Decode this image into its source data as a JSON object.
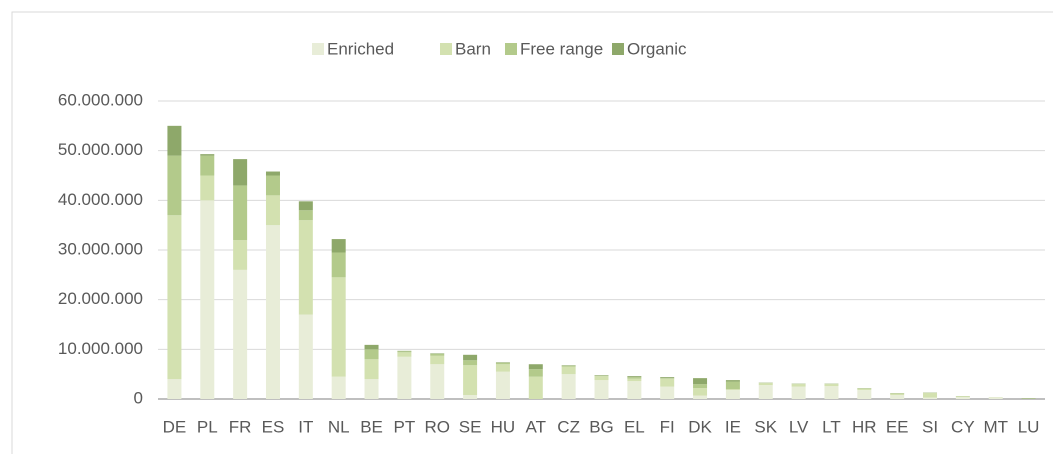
{
  "chart_data": {
    "type": "stacked_bar",
    "categories": [
      "DE",
      "PL",
      "FR",
      "ES",
      "IT",
      "NL",
      "BE",
      "PT",
      "RO",
      "SE",
      "HU",
      "AT",
      "CZ",
      "BG",
      "EL",
      "FI",
      "DK",
      "IE",
      "SK",
      "LV",
      "LT",
      "HR",
      "EE",
      "SI",
      "CY",
      "MT",
      "LU"
    ],
    "series": [
      {
        "name": "Enriched",
        "color": "#e8edd8",
        "values": [
          4000000,
          40000000,
          26000000,
          35000000,
          17000000,
          4500000,
          4000000,
          8500000,
          7000000,
          800000,
          5500000,
          0,
          5000000,
          3800000,
          3600000,
          2500000,
          700000,
          1800000,
          2800000,
          2500000,
          2600000,
          1800000,
          800000,
          300000,
          400000,
          350000,
          0
        ]
      },
      {
        "name": "Barn",
        "color": "#d3e1b0",
        "values": [
          33000000,
          5000000,
          6000000,
          6000000,
          19000000,
          20000000,
          4000000,
          900000,
          1700000,
          6000000,
          1500000,
          4500000,
          1500000,
          800000,
          500000,
          1600000,
          1500000,
          200000,
          400000,
          500000,
          400000,
          300000,
          300000,
          900000,
          150000,
          50000,
          50000
        ]
      },
      {
        "name": "Free range",
        "color": "#b3ca8b",
        "values": [
          12000000,
          4000000,
          11000000,
          4000000,
          2000000,
          5000000,
          2000000,
          200000,
          400000,
          1000000,
          300000,
          1500000,
          200000,
          100000,
          300000,
          100000,
          800000,
          1500000,
          50000,
          50000,
          50000,
          50000,
          50000,
          50000,
          30000,
          0,
          100000
        ]
      },
      {
        "name": "Organic",
        "color": "#8ea86a",
        "values": [
          6000000,
          300000,
          5300000,
          800000,
          1800000,
          2700000,
          900000,
          100000,
          100000,
          1100000,
          100000,
          1000000,
          100000,
          100000,
          200000,
          200000,
          1200000,
          300000,
          50000,
          50000,
          50000,
          50000,
          50000,
          50000,
          20000,
          0,
          50000
        ]
      }
    ],
    "ylim": [
      0,
      60000000
    ],
    "yticks": [
      0,
      {
        "value": 10000000,
        "label": "10.000.000"
      },
      {
        "value": 20000000,
        "label": "20.000.000"
      },
      {
        "value": 30000000,
        "label": "30.000.000"
      },
      {
        "value": 40000000,
        "label": "40.000.000"
      },
      {
        "value": 50000000,
        "label": "50.000.000"
      },
      {
        "value": 60000000,
        "label": "60.000.000"
      }
    ],
    "grid": true,
    "legend": "top"
  }
}
